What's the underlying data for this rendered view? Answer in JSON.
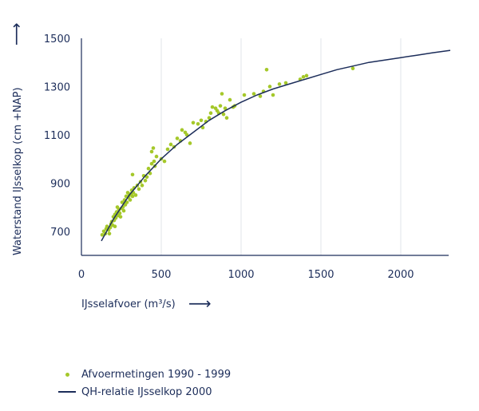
{
  "colors": {
    "dots": "#a5c82a",
    "line": "#1c2d5a",
    "grid": "#e2e4ea",
    "axis": "#1c2d5a"
  },
  "chart_data": {
    "type": "scatter",
    "xlabel": "IJsselafvoer (m³/s)",
    "ylabel": "Waterstand IJsselkop (cm +NAP)",
    "x_arrow": "⟶",
    "y_arrow": "⟶",
    "xlim": [
      0,
      2300
    ],
    "ylim": [
      600,
      1500
    ],
    "xticks": [
      0,
      500,
      1000,
      1500,
      2000
    ],
    "yticks": [
      700,
      900,
      1100,
      1300,
      1500
    ],
    "grid": "vertical",
    "legend_position": "bottom-left",
    "series": [
      {
        "name": "Afvoermetingen 1990 - 1999",
        "kind": "scatter",
        "points": [
          [
            130,
            685
          ],
          [
            140,
            700
          ],
          [
            150,
            690
          ],
          [
            155,
            710
          ],
          [
            160,
            720
          ],
          [
            170,
            705
          ],
          [
            175,
            690
          ],
          [
            180,
            715
          ],
          [
            185,
            730
          ],
          [
            190,
            740
          ],
          [
            195,
            725
          ],
          [
            200,
            760
          ],
          [
            205,
            745
          ],
          [
            210,
            770
          ],
          [
            210,
            720
          ],
          [
            215,
            755
          ],
          [
            220,
            780
          ],
          [
            225,
            800
          ],
          [
            230,
            765
          ],
          [
            235,
            790
          ],
          [
            240,
            775
          ],
          [
            245,
            760
          ],
          [
            250,
            795
          ],
          [
            255,
            820
          ],
          [
            260,
            800
          ],
          [
            265,
            785
          ],
          [
            270,
            830
          ],
          [
            275,
            810
          ],
          [
            280,
            845
          ],
          [
            285,
            820
          ],
          [
            290,
            860
          ],
          [
            295,
            840
          ],
          [
            300,
            850
          ],
          [
            305,
            830
          ],
          [
            310,
            855
          ],
          [
            315,
            870
          ],
          [
            320,
            845
          ],
          [
            320,
            935
          ],
          [
            325,
            860
          ],
          [
            330,
            880
          ],
          [
            340,
            850
          ],
          [
            350,
            890
          ],
          [
            360,
            875
          ],
          [
            370,
            905
          ],
          [
            380,
            890
          ],
          [
            390,
            930
          ],
          [
            400,
            910
          ],
          [
            410,
            925
          ],
          [
            420,
            960
          ],
          [
            430,
            940
          ],
          [
            440,
            980
          ],
          [
            440,
            1030
          ],
          [
            450,
            1045
          ],
          [
            455,
            990
          ],
          [
            460,
            970
          ],
          [
            470,
            1010
          ],
          [
            500,
            1000
          ],
          [
            520,
            990
          ],
          [
            540,
            1040
          ],
          [
            560,
            1060
          ],
          [
            580,
            1050
          ],
          [
            600,
            1085
          ],
          [
            620,
            1075
          ],
          [
            630,
            1120
          ],
          [
            650,
            1110
          ],
          [
            660,
            1100
          ],
          [
            680,
            1065
          ],
          [
            700,
            1150
          ],
          [
            730,
            1145
          ],
          [
            750,
            1160
          ],
          [
            760,
            1130
          ],
          [
            780,
            1155
          ],
          [
            800,
            1170
          ],
          [
            810,
            1190
          ],
          [
            820,
            1215
          ],
          [
            840,
            1210
          ],
          [
            850,
            1200
          ],
          [
            860,
            1190
          ],
          [
            870,
            1220
          ],
          [
            880,
            1270
          ],
          [
            890,
            1185
          ],
          [
            900,
            1210
          ],
          [
            910,
            1170
          ],
          [
            930,
            1245
          ],
          [
            950,
            1215
          ],
          [
            960,
            1220
          ],
          [
            1020,
            1265
          ],
          [
            1080,
            1270
          ],
          [
            1120,
            1260
          ],
          [
            1140,
            1280
          ],
          [
            1160,
            1370
          ],
          [
            1180,
            1300
          ],
          [
            1200,
            1265
          ],
          [
            1240,
            1310
          ],
          [
            1280,
            1315
          ],
          [
            1370,
            1330
          ],
          [
            1390,
            1340
          ],
          [
            1410,
            1345
          ],
          [
            1700,
            1375
          ]
        ]
      },
      {
        "name": "QH-relatie IJsselkop 2000",
        "kind": "line",
        "points": [
          [
            125,
            660
          ],
          [
            200,
            750
          ],
          [
            300,
            850
          ],
          [
            400,
            930
          ],
          [
            500,
            1000
          ],
          [
            600,
            1060
          ],
          [
            700,
            1110
          ],
          [
            800,
            1160
          ],
          [
            900,
            1200
          ],
          [
            1000,
            1235
          ],
          [
            1100,
            1265
          ],
          [
            1200,
            1290
          ],
          [
            1300,
            1310
          ],
          [
            1400,
            1330
          ],
          [
            1500,
            1350
          ],
          [
            1600,
            1370
          ],
          [
            1700,
            1385
          ],
          [
            1800,
            1400
          ],
          [
            1900,
            1410
          ],
          [
            2000,
            1420
          ],
          [
            2100,
            1430
          ],
          [
            2200,
            1440
          ],
          [
            2310,
            1450
          ]
        ]
      }
    ]
  }
}
